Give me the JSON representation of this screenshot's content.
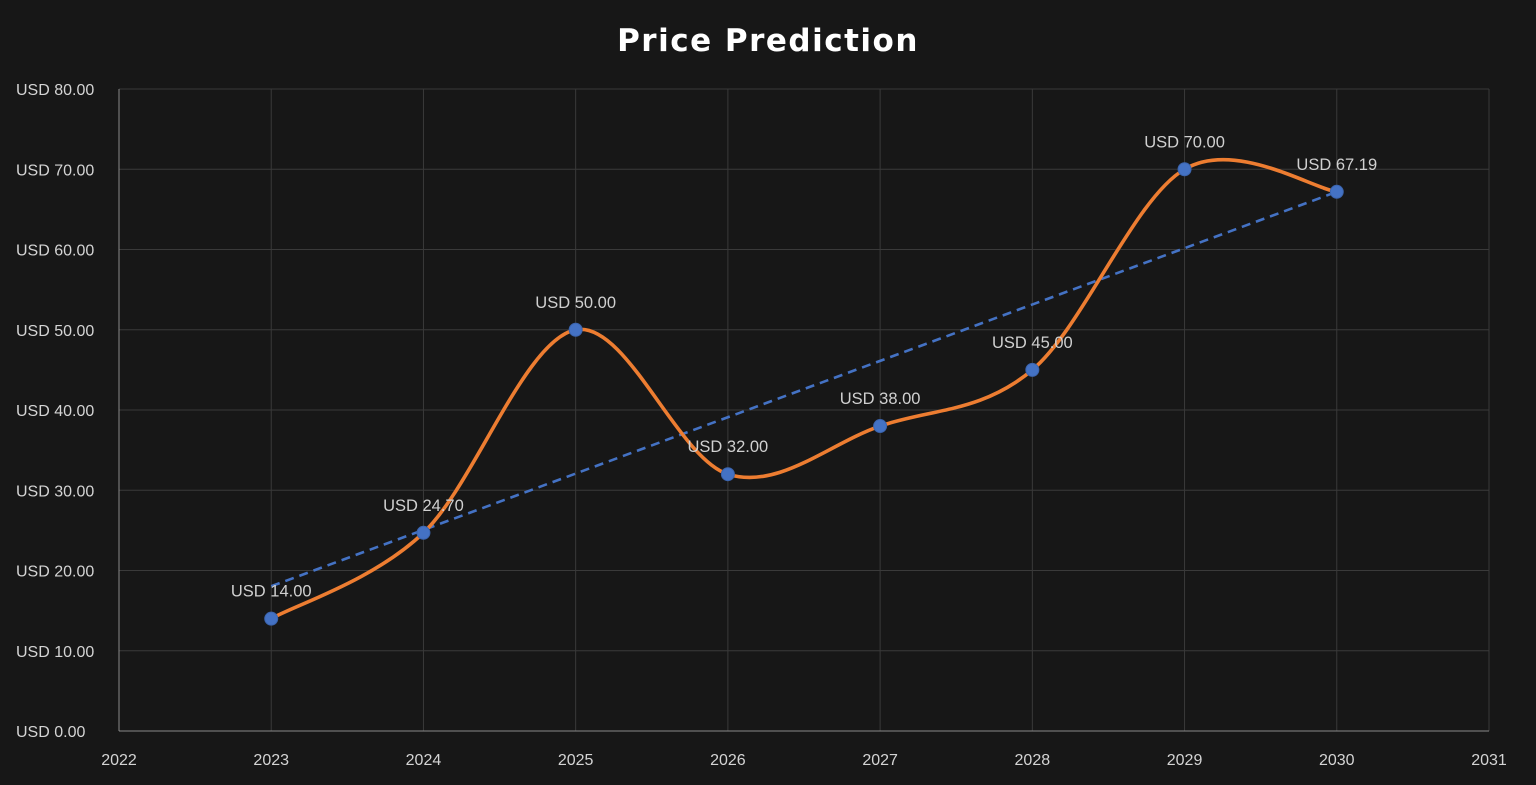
{
  "chart_data": {
    "type": "line",
    "title": "Price Prediction",
    "xlabel": "",
    "ylabel": "",
    "x": [
      2023,
      2024,
      2025,
      2026,
      2027,
      2028,
      2029,
      2030
    ],
    "values": [
      14.0,
      24.7,
      50.0,
      32.0,
      38.0,
      45.0,
      70.0,
      67.19
    ],
    "data_labels": [
      "USD 14.00",
      "USD 24.70",
      "USD 50.00",
      "USD 32.00",
      "USD 38.00",
      "USD 45.00",
      "USD 70.00",
      "USD 67.19"
    ],
    "xlim": [
      2022,
      2031
    ],
    "ylim": [
      0,
      80
    ],
    "x_ticks": [
      "2022",
      "2023",
      "2024",
      "2025",
      "2026",
      "2027",
      "2028",
      "2029",
      "2030",
      "2031"
    ],
    "y_ticks": [
      "USD 0.00",
      "USD 10.00",
      "USD 20.00",
      "USD 30.00",
      "USD 40.00",
      "USD 50.00",
      "USD 60.00",
      "USD 70.00",
      "USD 80.00"
    ],
    "trendline": {
      "type": "linear",
      "style": "dashed"
    },
    "smoothed": true,
    "grid": true,
    "legend": "none",
    "colors": {
      "background": "#171717",
      "line": "#ed7d31",
      "marker": "#4472c4",
      "trendline": "#4472c4",
      "grid": "#3a3a3a"
    }
  }
}
